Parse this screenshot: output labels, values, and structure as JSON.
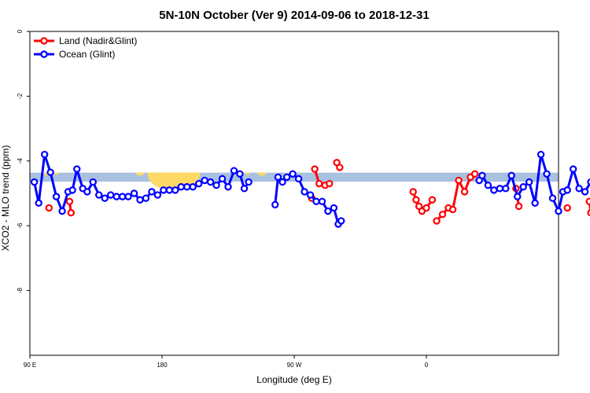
{
  "chart_data": {
    "type": "line",
    "title": "5N-10N October (Ver 9)   2014-09-06 to 2018-12-31",
    "xlabel": "Longitude (deg E)",
    "ylabel": "XCO2 - MLO trend (ppm)",
    "xlim": [
      90,
      450
    ],
    "ylim": [
      -10,
      0
    ],
    "x_ticks": [
      {
        "value": 90,
        "label": "90 E"
      },
      {
        "value": 180,
        "label": "180"
      },
      {
        "value": 270,
        "label": "90 W"
      },
      {
        "value": 360,
        "label": "0"
      },
      {
        "value": 450,
        "label": "90 E"
      },
      {
        "value": 540,
        "label": "180"
      }
    ],
    "y_ticks": [
      {
        "value": 0,
        "label": "0"
      },
      {
        "value": -2,
        "label": "-2"
      },
      {
        "value": -4,
        "label": "-4"
      },
      {
        "value": -6,
        "label": "-6"
      },
      {
        "value": -8,
        "label": "-8"
      }
    ],
    "band": {
      "y_center": -4.5,
      "y_half_width": 0.14,
      "color": "#a9c1e0"
    },
    "land_shading": {
      "color": "#ffd966",
      "regions": [
        [
          12,
          3
        ],
        [
          18,
          2
        ],
        [
          75,
          3
        ],
        [
          98,
          18
        ],
        [
          108,
          7
        ],
        [
          148,
          2
        ],
        [
          158,
          3
        ]
      ]
    },
    "series": [
      {
        "name": "Land (Nadir&Glint)",
        "color": "#ff0000",
        "segments": [
          [
            [
              103,
              -5.45
            ]
          ],
          [
            [
              117,
              -5.25
            ],
            [
              118,
              -5.6
            ]
          ],
          [
            [
              282,
              -5.15
            ]
          ],
          [
            [
              284,
              -4.25
            ],
            [
              287,
              -4.7
            ],
            [
              291,
              -4.75
            ],
            [
              294,
              -4.7
            ]
          ],
          [
            [
              299,
              -4.05
            ],
            [
              301,
              -4.2
            ]
          ],
          [
            [
              351,
              -4.95
            ],
            [
              353,
              -5.2
            ],
            [
              355,
              -5.4
            ],
            [
              357,
              -5.55
            ],
            [
              360,
              -5.45
            ],
            [
              364,
              -5.2
            ]
          ],
          [
            [
              367,
              -5.85
            ],
            [
              371,
              -5.65
            ],
            [
              375,
              -5.45
            ],
            [
              378,
              -5.5
            ],
            [
              382,
              -4.6
            ],
            [
              386,
              -4.95
            ],
            [
              390,
              -4.5
            ],
            [
              393,
              -4.4
            ]
          ],
          [
            [
              421,
              -4.85
            ],
            [
              423,
              -5.4
            ]
          ],
          [
            [
              456,
              -5.45
            ]
          ],
          [
            [
              471,
              -5.25
            ],
            [
              472,
              -5.6
            ]
          ]
        ]
      },
      {
        "name": "Ocean (Glint)",
        "color": "#0000ff",
        "segments": [
          [
            [
              93,
              -4.65
            ],
            [
              96,
              -5.3
            ],
            [
              100,
              -3.8
            ],
            [
              104,
              -4.35
            ],
            [
              108,
              -5.1
            ],
            [
              112,
              -5.55
            ],
            [
              116,
              -4.95
            ],
            [
              119,
              -4.9
            ],
            [
              122,
              -4.25
            ],
            [
              126,
              -4.85
            ],
            [
              129,
              -4.95
            ],
            [
              133,
              -4.65
            ],
            [
              137,
              -5.05
            ],
            [
              141,
              -5.15
            ],
            [
              145,
              -5.05
            ],
            [
              149,
              -5.1
            ],
            [
              153,
              -5.1
            ],
            [
              157,
              -5.1
            ],
            [
              161,
              -5.0
            ],
            [
              165,
              -5.2
            ],
            [
              169,
              -5.15
            ],
            [
              173,
              -4.95
            ],
            [
              177,
              -5.05
            ],
            [
              181,
              -4.9
            ],
            [
              185,
              -4.9
            ],
            [
              189,
              -4.9
            ],
            [
              193,
              -4.8
            ],
            [
              197,
              -4.8
            ],
            [
              201,
              -4.8
            ],
            [
              205,
              -4.7
            ],
            [
              209,
              -4.6
            ],
            [
              213,
              -4.65
            ],
            [
              217,
              -4.75
            ],
            [
              221,
              -4.55
            ],
            [
              225,
              -4.8
            ],
            [
              229,
              -4.3
            ],
            [
              233,
              -4.4
            ],
            [
              236,
              -4.85
            ],
            [
              239,
              -4.65
            ]
          ],
          [
            [
              257,
              -5.35
            ],
            [
              259,
              -4.5
            ],
            [
              262,
              -4.65
            ],
            [
              265,
              -4.5
            ],
            [
              269,
              -4.4
            ],
            [
              273,
              -4.55
            ],
            [
              277,
              -4.95
            ],
            [
              281,
              -5.05
            ],
            [
              285,
              -5.25
            ],
            [
              289,
              -5.25
            ],
            [
              293,
              -5.55
            ],
            [
              297,
              -5.45
            ],
            [
              300,
              -5.95
            ],
            [
              302,
              -5.85
            ]
          ],
          [
            [
              396,
              -4.6
            ],
            [
              398,
              -4.45
            ],
            [
              402,
              -4.75
            ],
            [
              406,
              -4.9
            ],
            [
              410,
              -4.85
            ],
            [
              414,
              -4.85
            ],
            [
              418,
              -4.45
            ],
            [
              422,
              -5.1
            ],
            [
              426,
              -4.8
            ],
            [
              430,
              -4.65
            ],
            [
              434,
              -5.3
            ],
            [
              438,
              -3.8
            ],
            [
              442,
              -4.4
            ],
            [
              446,
              -5.15
            ],
            [
              450,
              -5.55
            ],
            [
              453,
              -4.95
            ],
            [
              456,
              -4.9
            ],
            [
              460,
              -4.25
            ],
            [
              464,
              -4.85
            ],
            [
              468,
              -4.95
            ],
            [
              472,
              -4.65
            ],
            [
              476,
              -5.05
            ],
            [
              480,
              -5.15
            ],
            [
              484,
              -5.05
            ],
            [
              488,
              -5.1
            ],
            [
              492,
              -5.1
            ],
            [
              496,
              -5.1
            ]
          ]
        ]
      }
    ],
    "legend": {
      "position": "top-left",
      "entries": [
        {
          "label": "Land (Nadir&Glint)",
          "color": "#ff0000"
        },
        {
          "label": "Ocean (Glint)",
          "color": "#0000ff"
        }
      ]
    }
  }
}
